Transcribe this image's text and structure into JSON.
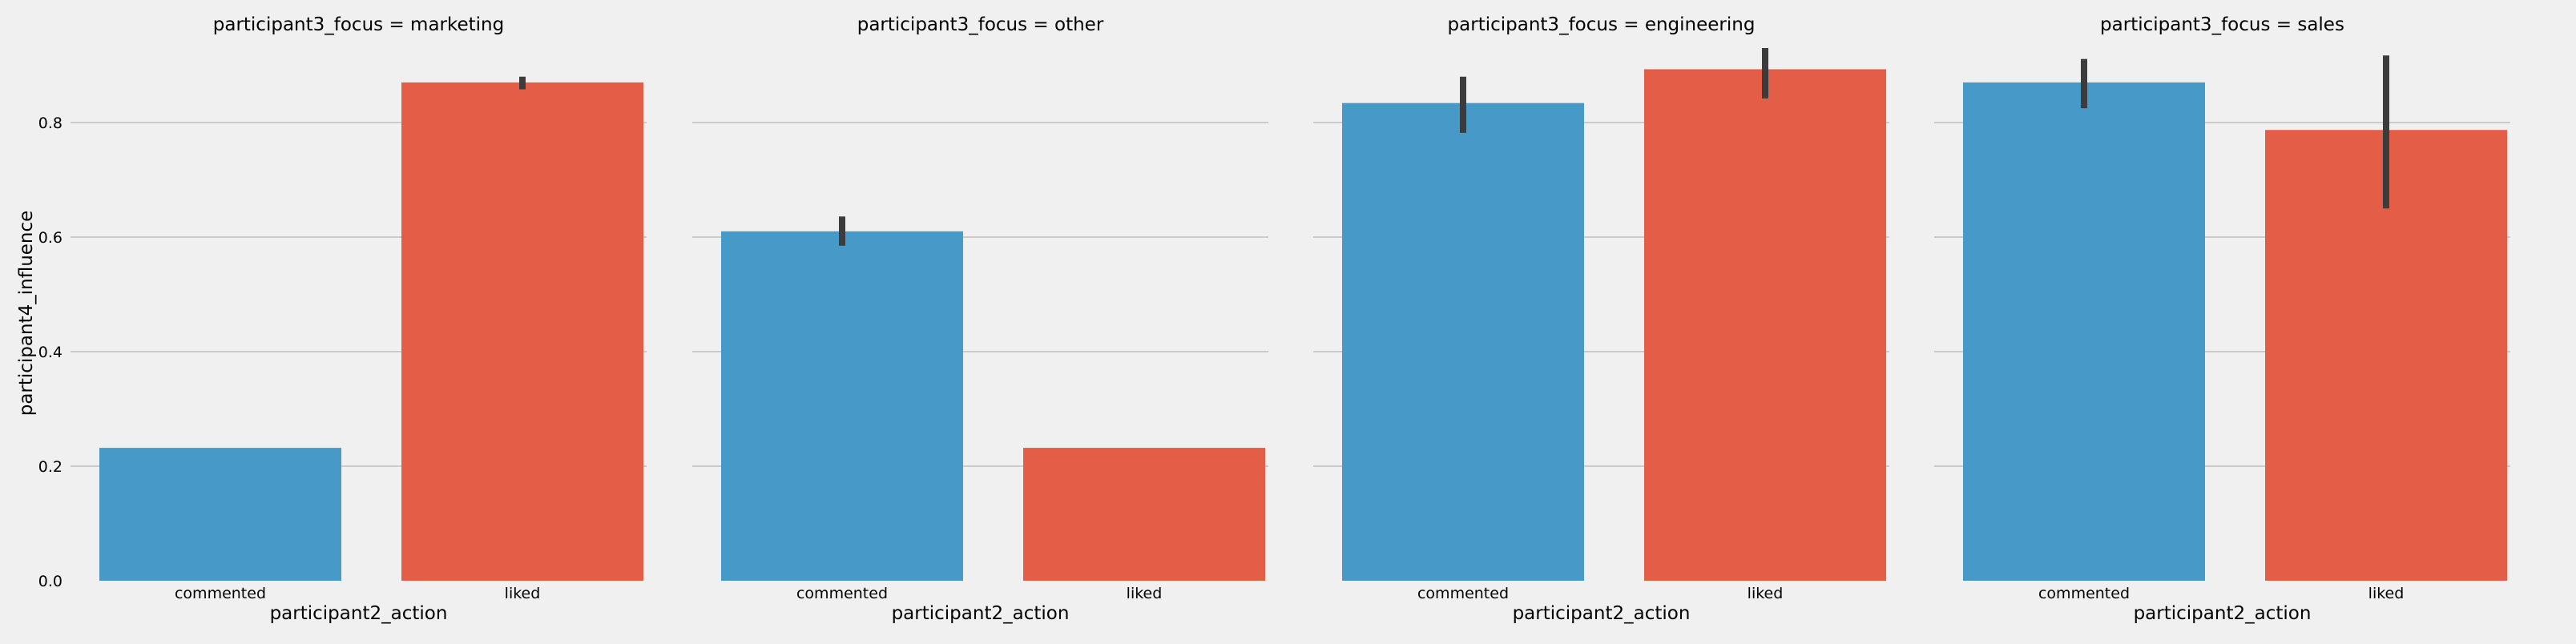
{
  "chart_data": {
    "type": "bar",
    "layout": "facet-grid",
    "ylabel": "participant4_influence",
    "xlabel": "participant2_action",
    "ylim": [
      0,
      0.93
    ],
    "yticks": [
      "0.0",
      "0.2",
      "0.4",
      "0.6",
      "0.8"
    ],
    "grid": "horizontal",
    "categories": [
      "commented",
      "liked"
    ],
    "colors": {
      "commented": "#479ac7",
      "liked": "#e45e47",
      "errorbar": "#3c3c3c",
      "grid": "#cbcbcb",
      "background": "#f0f0f0"
    },
    "facets": [
      {
        "title": "participant3_focus = marketing",
        "values": [
          0.232,
          0.87
        ],
        "errors": [
          [
            0.232,
            0.232
          ],
          [
            0.858,
            0.88
          ]
        ]
      },
      {
        "title": "participant3_focus = other",
        "values": [
          0.61,
          0.232
        ],
        "errors": [
          [
            0.585,
            0.636
          ],
          [
            0.232,
            0.232
          ]
        ]
      },
      {
        "title": "participant3_focus = engineering",
        "values": [
          0.834,
          0.893
        ],
        "errors": [
          [
            0.782,
            0.88
          ],
          [
            0.842,
            0.93
          ]
        ]
      },
      {
        "title": "participant3_focus = sales",
        "values": [
          0.87,
          0.787
        ],
        "errors": [
          [
            0.825,
            0.911
          ],
          [
            0.65,
            0.917
          ]
        ]
      }
    ]
  }
}
